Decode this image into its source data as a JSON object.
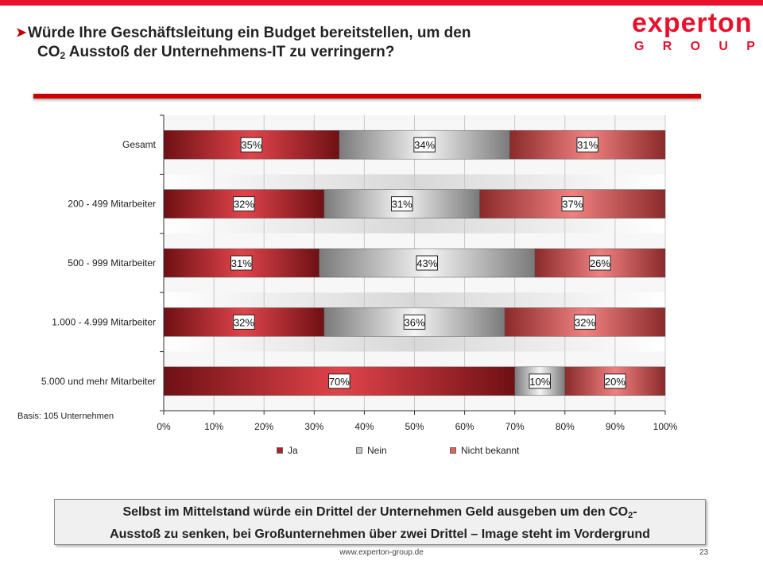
{
  "header": {
    "title_line1": "Würde Ihre Geschäftsleitung ein Budget bereitstellen, um den",
    "title_co": "CO",
    "title_sub": "2",
    "title_line2_rest": " Ausstoß der Unternehmens-IT zu verringern?",
    "bullet_icon": "arrow-bullet-icon"
  },
  "logo": {
    "word": "experton",
    "group_letters": [
      "G",
      "R",
      "O",
      "U",
      "P"
    ]
  },
  "chart_data": {
    "type": "bar",
    "orientation": "horizontal",
    "stacked": true,
    "percent_stacked": true,
    "categories": [
      "Gesamt",
      "200 - 499 Mitarbeiter",
      "500 - 999 Mitarbeiter",
      "1.000 - 4.999 Mitarbeiter",
      "5.000 und mehr Mitarbeiter"
    ],
    "series": [
      {
        "name": "Ja",
        "values": [
          35,
          32,
          31,
          32,
          70
        ],
        "labels": [
          "35%",
          "32%",
          "31%",
          "32%",
          "70%"
        ],
        "color": "#b11f2a"
      },
      {
        "name": "Nein",
        "values": [
          34,
          31,
          43,
          36,
          10
        ],
        "labels": [
          "34%",
          "31%",
          "43%",
          "36%",
          "10%"
        ],
        "color": "#a9a9a9"
      },
      {
        "name": "Nicht bekannt",
        "values": [
          31,
          37,
          26,
          32,
          20
        ],
        "labels": [
          "31%",
          "37%",
          "26%",
          "32%",
          "20%"
        ],
        "color": "#d9534f"
      }
    ],
    "xticks": [
      "0%",
      "10%",
      "20%",
      "30%",
      "40%",
      "50%",
      "60%",
      "70%",
      "80%",
      "90%",
      "100%"
    ],
    "xlim": [
      0,
      100
    ],
    "grid": true,
    "legend_position": "bottom",
    "note": "Basis: 105 Unternehmen"
  },
  "callout": {
    "text_part1": "Selbst im Mittelstand würde ein Drittel der Unternehmen Geld ausgeben um den CO",
    "sub": "2",
    "text_part2": "-",
    "line2": "Ausstoß zu senken, bei Großunternehmen über zwei Drittel – Image steht im Vordergrund"
  },
  "footer": {
    "url": "www.experton-group.de",
    "page": "23"
  }
}
